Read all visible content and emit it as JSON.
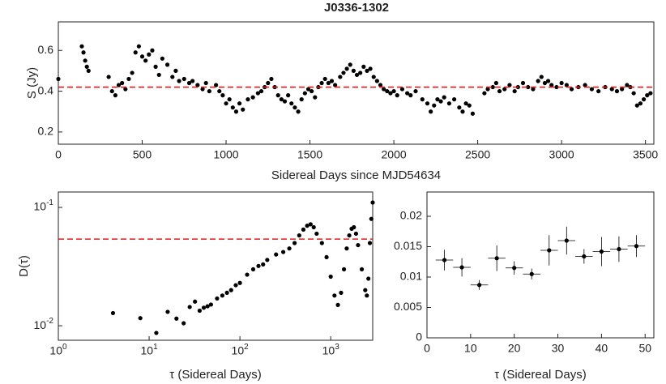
{
  "chart_data": [
    {
      "type": "scatter",
      "title": "J0336-1302",
      "xlabel": "Sidereal Days since MJD54634",
      "ylabel": "S (Jy)",
      "color": "#000000",
      "reference_line": {
        "value": 0.42,
        "color": "#e41a1c"
      },
      "xlim": [
        0,
        3550
      ],
      "ylim": [
        0.14,
        0.74
      ],
      "xticks": [
        0,
        500,
        1000,
        1500,
        2000,
        2500,
        3000,
        3500
      ],
      "yticks": [
        0.2,
        0.4,
        0.6
      ],
      "x": [
        0,
        140,
        150,
        160,
        170,
        180,
        300,
        320,
        340,
        360,
        380,
        400,
        420,
        440,
        460,
        480,
        500,
        520,
        540,
        560,
        580,
        600,
        620,
        650,
        680,
        700,
        720,
        750,
        780,
        800,
        830,
        860,
        880,
        900,
        940,
        960,
        980,
        1000,
        1020,
        1040,
        1060,
        1080,
        1100,
        1130,
        1160,
        1190,
        1210,
        1230,
        1250,
        1270,
        1290,
        1310,
        1330,
        1350,
        1370,
        1390,
        1410,
        1430,
        1450,
        1470,
        1490,
        1510,
        1530,
        1550,
        1570,
        1590,
        1610,
        1630,
        1650,
        1680,
        1700,
        1720,
        1740,
        1760,
        1780,
        1800,
        1820,
        1840,
        1860,
        1880,
        1900,
        1920,
        1940,
        1960,
        1980,
        2000,
        2020,
        2050,
        2080,
        2100,
        2130,
        2170,
        2200,
        2220,
        2240,
        2260,
        2280,
        2300,
        2330,
        2360,
        2390,
        2410,
        2430,
        2450,
        2470,
        2540,
        2560,
        2590,
        2610,
        2630,
        2660,
        2690,
        2720,
        2740,
        2770,
        2800,
        2830,
        2860,
        2880,
        2900,
        2920,
        2940,
        2970,
        3000,
        3030,
        3060,
        3100,
        3140,
        3180,
        3220,
        3260,
        3300,
        3330,
        3360,
        3390,
        3410,
        3430,
        3450,
        3470,
        3490,
        3510,
        3530
      ],
      "values": [
        0.46,
        0.62,
        0.59,
        0.55,
        0.52,
        0.5,
        0.47,
        0.4,
        0.38,
        0.43,
        0.44,
        0.41,
        0.46,
        0.49,
        0.59,
        0.62,
        0.57,
        0.55,
        0.58,
        0.6,
        0.52,
        0.48,
        0.56,
        0.53,
        0.47,
        0.5,
        0.45,
        0.46,
        0.44,
        0.45,
        0.43,
        0.41,
        0.44,
        0.4,
        0.43,
        0.4,
        0.38,
        0.34,
        0.36,
        0.32,
        0.3,
        0.34,
        0.31,
        0.36,
        0.37,
        0.39,
        0.4,
        0.42,
        0.44,
        0.46,
        0.42,
        0.38,
        0.36,
        0.35,
        0.38,
        0.34,
        0.32,
        0.3,
        0.36,
        0.39,
        0.41,
        0.4,
        0.37,
        0.42,
        0.44,
        0.46,
        0.44,
        0.45,
        0.43,
        0.47,
        0.49,
        0.51,
        0.53,
        0.5,
        0.48,
        0.49,
        0.52,
        0.5,
        0.51,
        0.47,
        0.45,
        0.43,
        0.41,
        0.4,
        0.39,
        0.4,
        0.38,
        0.41,
        0.39,
        0.38,
        0.4,
        0.36,
        0.34,
        0.3,
        0.33,
        0.36,
        0.35,
        0.37,
        0.34,
        0.36,
        0.32,
        0.3,
        0.34,
        0.33,
        0.29,
        0.39,
        0.41,
        0.42,
        0.44,
        0.4,
        0.41,
        0.43,
        0.4,
        0.42,
        0.44,
        0.42,
        0.41,
        0.45,
        0.47,
        0.44,
        0.45,
        0.43,
        0.42,
        0.44,
        0.43,
        0.41,
        0.42,
        0.43,
        0.41,
        0.4,
        0.42,
        0.41,
        0.4,
        0.41,
        0.43,
        0.42,
        0.39,
        0.33,
        0.34,
        0.36,
        0.38,
        0.39
      ]
    },
    {
      "type": "scatter",
      "xlabel": "τ (Sidereal Days)",
      "ylabel": "D(τ)",
      "xlog": true,
      "ylog": true,
      "color": "#000000",
      "reference_line": {
        "value": 0.054,
        "color": "#e41a1c"
      },
      "xlim": [
        1,
        2900
      ],
      "ylim": [
        0.00754,
        0.135
      ],
      "xticks": [
        {
          "value": 1,
          "label": "10^0"
        },
        {
          "value": 10,
          "label": "10^1"
        },
        {
          "value": 100,
          "label": "10^2"
        },
        {
          "value": 1000,
          "label": "10^3"
        }
      ],
      "yticks": [
        {
          "value": 0.01,
          "label": "10^-2"
        },
        {
          "value": 0.1,
          "label": "10^-1"
        }
      ],
      "x": [
        4,
        8,
        12,
        16,
        20,
        24,
        28,
        32,
        36,
        40,
        44,
        48,
        56,
        64,
        72,
        80,
        90,
        100,
        120,
        140,
        160,
        180,
        200,
        250,
        300,
        350,
        400,
        450,
        500,
        550,
        600,
        650,
        700,
        800,
        900,
        1000,
        1100,
        1200,
        1300,
        1400,
        1500,
        1600,
        1700,
        1800,
        1900,
        2000,
        2200,
        2400,
        2500,
        2600,
        2700,
        2800,
        2900
      ],
      "values": [
        0.0128,
        0.0116,
        0.0087,
        0.0131,
        0.0115,
        0.0105,
        0.0144,
        0.016,
        0.0134,
        0.0142,
        0.0146,
        0.0151,
        0.017,
        0.018,
        0.019,
        0.02,
        0.022,
        0.023,
        0.027,
        0.03,
        0.032,
        0.033,
        0.036,
        0.04,
        0.042,
        0.045,
        0.05,
        0.058,
        0.065,
        0.07,
        0.072,
        0.068,
        0.06,
        0.05,
        0.038,
        0.026,
        0.018,
        0.015,
        0.019,
        0.03,
        0.045,
        0.058,
        0.066,
        0.068,
        0.06,
        0.048,
        0.03,
        0.02,
        0.018,
        0.025,
        0.05,
        0.08,
        0.11
      ]
    },
    {
      "type": "scatter",
      "xlabel": "τ (Sidereal Days)",
      "color": "#000000",
      "xlim": [
        0,
        52
      ],
      "ylim": [
        0,
        0.024
      ],
      "xticks": [
        0,
        10,
        20,
        30,
        40,
        50
      ],
      "yticks": [
        0,
        0.005,
        0.01,
        0.015,
        0.02
      ],
      "x": [
        4,
        8,
        12,
        16,
        20,
        24,
        28,
        32,
        36,
        40,
        44,
        48
      ],
      "values": [
        0.0128,
        0.0116,
        0.0087,
        0.0131,
        0.0115,
        0.0105,
        0.0144,
        0.016,
        0.0134,
        0.0142,
        0.0146,
        0.0151
      ],
      "yerr": [
        0.0017,
        0.0015,
        0.0008,
        0.0021,
        0.0011,
        0.0009,
        0.0025,
        0.0023,
        0.0012,
        0.0024,
        0.0021,
        0.0018
      ],
      "xerr": [
        2,
        2,
        2,
        2,
        2,
        2,
        2,
        2,
        2,
        2,
        2,
        2
      ]
    }
  ]
}
